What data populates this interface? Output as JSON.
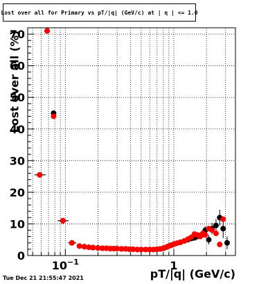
{
  "title": "Lost over all for Primary vs pT/|q| (GeV/c) at | η | <= 1.0",
  "timestamp": "Tue Dec 21 21:55:47 2021",
  "colors": {
    "series_red": "#ff0000",
    "series_black": "#000000",
    "grid": "#000000"
  },
  "chart_data": {
    "type": "scatter",
    "title": "Lost over all for Primary vs pT/|q| (GeV/c) at | η | <= 1.0",
    "xlabel": "pT/|q| (GeV/c)",
    "ylabel": "Lost over all (%)",
    "x_scale": "log",
    "xlim": [
      0.045,
      3.7
    ],
    "ylim": [
      0,
      72
    ],
    "grid": true,
    "yticks": [
      {
        "value": 0,
        "label": "0"
      },
      {
        "value": 10,
        "label": "10"
      },
      {
        "value": 20,
        "label": "20"
      },
      {
        "value": 30,
        "label": "30"
      },
      {
        "value": 40,
        "label": "40"
      },
      {
        "value": 50,
        "label": "50"
      },
      {
        "value": 60,
        "label": "60"
      },
      {
        "value": 70,
        "label": "70"
      }
    ],
    "xticks": [
      {
        "value": 0.1,
        "base": "10",
        "exp": "−1"
      },
      {
        "value": 1,
        "label": "1"
      }
    ],
    "series": [
      {
        "color": "#000000",
        "points": [
          {
            "x": 0.058,
            "y": 25.5,
            "xerr": [
              0.052,
              0.066
            ],
            "yerr": 0.8
          },
          {
            "x": 0.068,
            "y": 71.0,
            "yerr": 0.6
          },
          {
            "x": 0.078,
            "y": 45.0,
            "yerr": 0.8
          },
          {
            "x": 0.095,
            "y": 11.0,
            "xerr": [
              0.085,
              0.107
            ],
            "yerr": 0.6
          },
          {
            "x": 0.115,
            "y": 4.0,
            "xerr": [
              0.106,
              0.126
            ],
            "yerr": 0.5
          },
          {
            "x": 0.135,
            "y": 3.0
          },
          {
            "x": 0.15,
            "y": 2.8
          },
          {
            "x": 0.165,
            "y": 2.6
          },
          {
            "x": 0.18,
            "y": 2.5
          },
          {
            "x": 0.2,
            "y": 2.4
          },
          {
            "x": 0.22,
            "y": 2.3
          },
          {
            "x": 0.24,
            "y": 2.3
          },
          {
            "x": 0.26,
            "y": 2.2
          },
          {
            "x": 0.28,
            "y": 2.2
          },
          {
            "x": 0.3,
            "y": 2.2
          },
          {
            "x": 0.33,
            "y": 2.1
          },
          {
            "x": 0.36,
            "y": 2.1
          },
          {
            "x": 0.39,
            "y": 2.0
          },
          {
            "x": 0.42,
            "y": 2.0
          },
          {
            "x": 0.46,
            "y": 1.9
          },
          {
            "x": 0.5,
            "y": 1.9
          },
          {
            "x": 0.55,
            "y": 1.9
          },
          {
            "x": 0.6,
            "y": 1.9
          },
          {
            "x": 0.65,
            "y": 1.9
          },
          {
            "x": 0.7,
            "y": 2.0
          },
          {
            "x": 0.75,
            "y": 2.1
          },
          {
            "x": 0.8,
            "y": 2.3
          },
          {
            "x": 0.85,
            "y": 2.6
          },
          {
            "x": 0.9,
            "y": 3.0
          },
          {
            "x": 0.95,
            "y": 3.3
          },
          {
            "x": 1.0,
            "y": 3.6
          },
          {
            "x": 1.07,
            "y": 3.9
          },
          {
            "x": 1.15,
            "y": 4.2
          },
          {
            "x": 1.25,
            "y": 4.6
          },
          {
            "x": 1.35,
            "y": 5.0
          },
          {
            "x": 1.45,
            "y": 5.4
          },
          {
            "x": 1.55,
            "y": 5.6
          },
          {
            "x": 1.65,
            "y": 6.0
          },
          {
            "x": 1.75,
            "y": 6.3
          },
          {
            "x": 1.85,
            "y": 6.6
          },
          {
            "x": 1.95,
            "y": 8.0,
            "yerr": 1.2
          },
          {
            "x": 2.1,
            "y": 5.0,
            "yerr": 1.5
          },
          {
            "x": 2.25,
            "y": 8.5,
            "yerr": 1.8
          },
          {
            "x": 2.45,
            "y": 9.5,
            "yerr": 2.0
          },
          {
            "x": 2.65,
            "y": 12.0,
            "yerr": 2.5
          },
          {
            "x": 2.85,
            "y": 8.5,
            "yerr": 3.0
          },
          {
            "x": 3.1,
            "y": 4.0,
            "yerr": 2.0
          }
        ]
      },
      {
        "color": "#ff0000",
        "points": [
          {
            "x": 0.058,
            "y": 25.5
          },
          {
            "x": 0.068,
            "y": 71.0
          },
          {
            "x": 0.078,
            "y": 44.0
          },
          {
            "x": 0.095,
            "y": 11.0
          },
          {
            "x": 0.115,
            "y": 4.0
          },
          {
            "x": 0.135,
            "y": 3.0
          },
          {
            "x": 0.15,
            "y": 2.8
          },
          {
            "x": 0.165,
            "y": 2.6
          },
          {
            "x": 0.18,
            "y": 2.5
          },
          {
            "x": 0.2,
            "y": 2.4
          },
          {
            "x": 0.22,
            "y": 2.3
          },
          {
            "x": 0.24,
            "y": 2.3
          },
          {
            "x": 0.26,
            "y": 2.2
          },
          {
            "x": 0.28,
            "y": 2.2
          },
          {
            "x": 0.3,
            "y": 2.2
          },
          {
            "x": 0.33,
            "y": 2.1
          },
          {
            "x": 0.36,
            "y": 2.1
          },
          {
            "x": 0.39,
            "y": 2.0
          },
          {
            "x": 0.42,
            "y": 2.0
          },
          {
            "x": 0.46,
            "y": 1.9
          },
          {
            "x": 0.5,
            "y": 1.9
          },
          {
            "x": 0.55,
            "y": 1.9
          },
          {
            "x": 0.6,
            "y": 1.9
          },
          {
            "x": 0.65,
            "y": 1.9
          },
          {
            "x": 0.7,
            "y": 2.0
          },
          {
            "x": 0.75,
            "y": 2.1
          },
          {
            "x": 0.8,
            "y": 2.3
          },
          {
            "x": 0.85,
            "y": 2.6
          },
          {
            "x": 0.9,
            "y": 3.0
          },
          {
            "x": 0.95,
            "y": 3.3
          },
          {
            "x": 1.0,
            "y": 3.6
          },
          {
            "x": 1.07,
            "y": 3.9
          },
          {
            "x": 1.15,
            "y": 4.2
          },
          {
            "x": 1.25,
            "y": 4.6
          },
          {
            "x": 1.35,
            "y": 5.2
          },
          {
            "x": 1.45,
            "y": 5.8
          },
          {
            "x": 1.55,
            "y": 6.8
          },
          {
            "x": 1.65,
            "y": 6.5
          },
          {
            "x": 1.75,
            "y": 6.0
          },
          {
            "x": 1.85,
            "y": 7.0
          },
          {
            "x": 1.95,
            "y": 6.5
          },
          {
            "x": 2.1,
            "y": 8.5
          },
          {
            "x": 2.25,
            "y": 8.0
          },
          {
            "x": 2.45,
            "y": 7.0
          },
          {
            "x": 2.65,
            "y": 3.5
          },
          {
            "x": 2.85,
            "y": 11.5
          }
        ]
      }
    ]
  }
}
